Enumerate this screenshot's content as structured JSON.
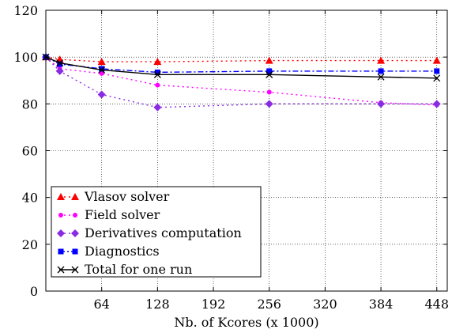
{
  "chart_data": {
    "type": "line",
    "title": "",
    "xlabel": "Nb. of Kcores (x 1000)",
    "ylabel": "",
    "xlim": [
      0,
      460
    ],
    "ylim": [
      0,
      120
    ],
    "xticks": [
      64,
      128,
      192,
      256,
      320,
      384,
      448
    ],
    "yticks": [
      0,
      20,
      40,
      60,
      80,
      100,
      120
    ],
    "grid": true,
    "legend_position": "bottom-left",
    "series": [
      {
        "name": "Vlasov solver",
        "color": "#ff0000",
        "marker": "triangle",
        "line": "dotted",
        "x": [
          0,
          16,
          64,
          128,
          256,
          384,
          448
        ],
        "y": [
          100,
          99,
          98,
          98,
          98.5,
          98.5,
          98.5
        ]
      },
      {
        "name": "Field solver",
        "color": "#ff00ff",
        "marker": "circle",
        "line": "dotted",
        "x": [
          0,
          16,
          64,
          128,
          256,
          384,
          448
        ],
        "y": [
          100,
          95,
          93,
          88,
          85,
          80.5,
          79.5
        ]
      },
      {
        "name": "Derivatives computation",
        "color": "#8a2be2",
        "marker": "diamond",
        "line": "dotted",
        "x": [
          0,
          16,
          64,
          128,
          256,
          384,
          448
        ],
        "y": [
          100,
          94,
          84,
          78.5,
          80,
          80,
          80
        ]
      },
      {
        "name": "Diagnostics",
        "color": "#0000ff",
        "marker": "square",
        "line": "dashdot",
        "x": [
          0,
          16,
          64,
          128,
          256,
          384,
          448
        ],
        "y": [
          100,
          97,
          95,
          93.5,
          94,
          94,
          94
        ]
      },
      {
        "name": "Total for one run",
        "color": "#000000",
        "marker": "x",
        "line": "solid",
        "x": [
          0,
          16,
          64,
          128,
          256,
          384,
          448
        ],
        "y": [
          100,
          97.5,
          94.5,
          92.5,
          92.5,
          91.5,
          91
        ]
      }
    ]
  }
}
